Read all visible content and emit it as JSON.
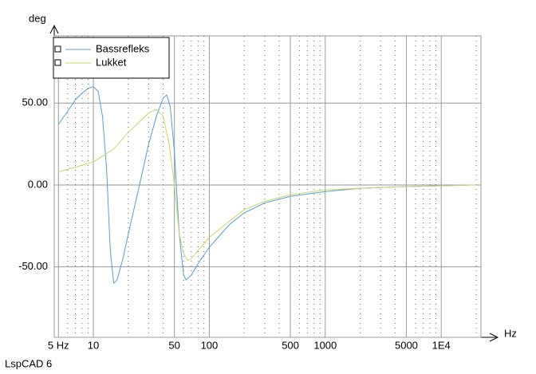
{
  "chart_data": {
    "type": "line",
    "ylabel": "deg",
    "xlabel": "Hz",
    "footer": "LspCAD 6",
    "xscale": "log",
    "xlim": [
      4.6,
      22000
    ],
    "ylim": [
      -93,
      91
    ],
    "xticks": [
      {
        "value": 5,
        "label": "5 Hz"
      },
      10,
      50,
      100,
      500,
      1000,
      5000,
      {
        "value": 10000,
        "label": "1E4"
      }
    ],
    "xgrid_minor": [
      6,
      7,
      8,
      9,
      20,
      30,
      40,
      60,
      70,
      80,
      90,
      200,
      300,
      400,
      600,
      700,
      800,
      900,
      2000,
      3000,
      4000,
      6000,
      7000,
      8000,
      9000,
      20000
    ],
    "yticks": [
      {
        "value": 50,
        "label": "50.00"
      },
      {
        "value": 0,
        "label": "0.00"
      },
      {
        "value": -50,
        "label": "-50.00"
      }
    ],
    "grid": true,
    "legend": "top-left",
    "series": [
      {
        "name": "Bassrefleks",
        "color": "#5b9bd5",
        "x": [
          5,
          6,
          7,
          8,
          9,
          10,
          11,
          12,
          13,
          14,
          15,
          16,
          18,
          20,
          25,
          30,
          35,
          40,
          43,
          46,
          50,
          55,
          60,
          63,
          70,
          80,
          100,
          150,
          200,
          300,
          500,
          1000,
          2000,
          5000,
          10000,
          20000
        ],
        "values": [
          37,
          45,
          52,
          56,
          59,
          60,
          57,
          42,
          10,
          -40,
          -60,
          -58,
          -45,
          -30,
          0,
          25,
          42,
          53,
          55,
          48,
          20,
          -30,
          -55,
          -58,
          -55,
          -48,
          -38,
          -24,
          -17,
          -11,
          -7,
          -4,
          -2,
          -1,
          -0.5,
          0
        ]
      },
      {
        "name": "Lukket",
        "color": "#c5d66b",
        "x": [
          5,
          10,
          15,
          20,
          30,
          35,
          40,
          45,
          50,
          55,
          60,
          65,
          70,
          80,
          100,
          150,
          200,
          300,
          500,
          1000,
          2000,
          5000,
          10000,
          20000
        ],
        "values": [
          8,
          14,
          22,
          32,
          44,
          46,
          42,
          25,
          0,
          -30,
          -42,
          -46,
          -45,
          -40,
          -32,
          -22,
          -15,
          -10,
          -6,
          -3,
          -2,
          -1,
          -0.5,
          0
        ]
      }
    ]
  }
}
